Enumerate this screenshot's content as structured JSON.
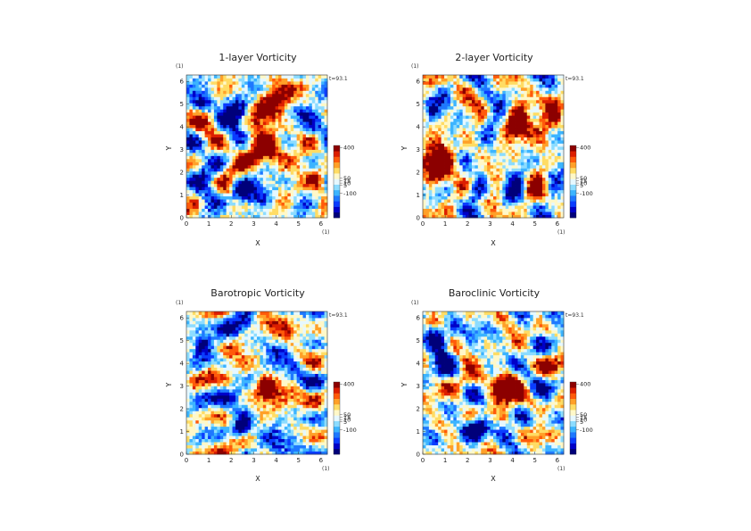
{
  "figure": {
    "unit_marker": "(1)",
    "time_label": "t=93.1"
  },
  "chart_data": [
    {
      "type": "heatmap",
      "title": "1-layer Vorticity",
      "xlabel": "X",
      "ylabel": "Y",
      "x_ticks": [
        "0",
        "1",
        "2",
        "3",
        "4",
        "5",
        "6"
      ],
      "y_ticks": [
        "0",
        "1",
        "2",
        "3",
        "4",
        "5",
        "6"
      ],
      "xlim": [
        0,
        6.283
      ],
      "ylim": [
        0,
        6.283
      ],
      "colorbar_ticks": [
        "400",
        "50",
        "15",
        "10",
        "5",
        "-100"
      ],
      "vortices": [
        {
          "x": 2.45,
          "y": 1.15,
          "strength": -1.0,
          "width": 0.35
        },
        {
          "x": 0.8,
          "y": 5.0,
          "strength": -0.8,
          "width": 0.35
        },
        {
          "x": 3.6,
          "y": 2.9,
          "strength": 0.9,
          "width": 0.55
        },
        {
          "x": 4.2,
          "y": 5.3,
          "strength": 0.6,
          "width": 0.5
        }
      ]
    },
    {
      "type": "heatmap",
      "title": "2-layer Vorticity",
      "xlabel": "X",
      "ylabel": "Y",
      "x_ticks": [
        "0",
        "1",
        "2",
        "3",
        "4",
        "5",
        "6"
      ],
      "y_ticks": [
        "0",
        "1",
        "2",
        "3",
        "4",
        "5",
        "6"
      ],
      "xlim": [
        0,
        6.283
      ],
      "ylim": [
        0,
        6.283
      ],
      "colorbar_ticks": [
        "400",
        "50",
        "15",
        "10",
        "5",
        "-100"
      ],
      "vortices": [
        {
          "x": 2.5,
          "y": 1.2,
          "strength": -0.5,
          "width": 0.3
        },
        {
          "x": 0.6,
          "y": 2.4,
          "strength": 0.8,
          "width": 0.6
        },
        {
          "x": 4.8,
          "y": 4.2,
          "strength": 0.7,
          "width": 0.6
        }
      ]
    },
    {
      "type": "heatmap",
      "title": "Barotropic Vorticity",
      "xlabel": "X",
      "ylabel": "Y",
      "x_ticks": [
        "0",
        "1",
        "2",
        "3",
        "4",
        "5",
        "6"
      ],
      "y_ticks": [
        "0",
        "1",
        "2",
        "3",
        "4",
        "5",
        "6"
      ],
      "xlim": [
        0,
        6.283
      ],
      "ylim": [
        0,
        6.283
      ],
      "colorbar_ticks": [
        "400",
        "50",
        "15",
        "10",
        "5",
        "-100"
      ],
      "vortices": [
        {
          "x": 2.45,
          "y": 1.1,
          "strength": -1.0,
          "width": 0.3
        },
        {
          "x": 0.7,
          "y": 4.85,
          "strength": -0.6,
          "width": 0.3
        },
        {
          "x": 3.55,
          "y": 2.9,
          "strength": 0.8,
          "width": 0.35
        }
      ]
    },
    {
      "type": "heatmap",
      "title": "Baroclinic Vorticity",
      "xlabel": "X",
      "ylabel": "Y",
      "x_ticks": [
        "0",
        "1",
        "2",
        "3",
        "4",
        "5",
        "6"
      ],
      "y_ticks": [
        "0",
        "1",
        "2",
        "3",
        "4",
        "5",
        "6"
      ],
      "xlim": [
        0,
        6.283
      ],
      "ylim": [
        0,
        6.283
      ],
      "colorbar_ticks": [
        "400",
        "50",
        "15",
        "10",
        "5",
        "-100"
      ],
      "vortices": [
        {
          "x": 2.5,
          "y": 1.15,
          "strength": -0.9,
          "width": 0.35
        },
        {
          "x": 0.7,
          "y": 5.0,
          "strength": -0.8,
          "width": 0.4
        },
        {
          "x": 3.6,
          "y": 2.9,
          "strength": 0.8,
          "width": 0.5
        }
      ]
    }
  ],
  "colors": {
    "scale": [
      "#00007a",
      "#0000c8",
      "#0a3cff",
      "#1e78ff",
      "#3cb4ff",
      "#8cdcff",
      "#e6f8ff",
      "#fff8c8",
      "#ffdc64",
      "#ffa028",
      "#ff5a0a",
      "#dc1e00",
      "#8c0000"
    ]
  }
}
